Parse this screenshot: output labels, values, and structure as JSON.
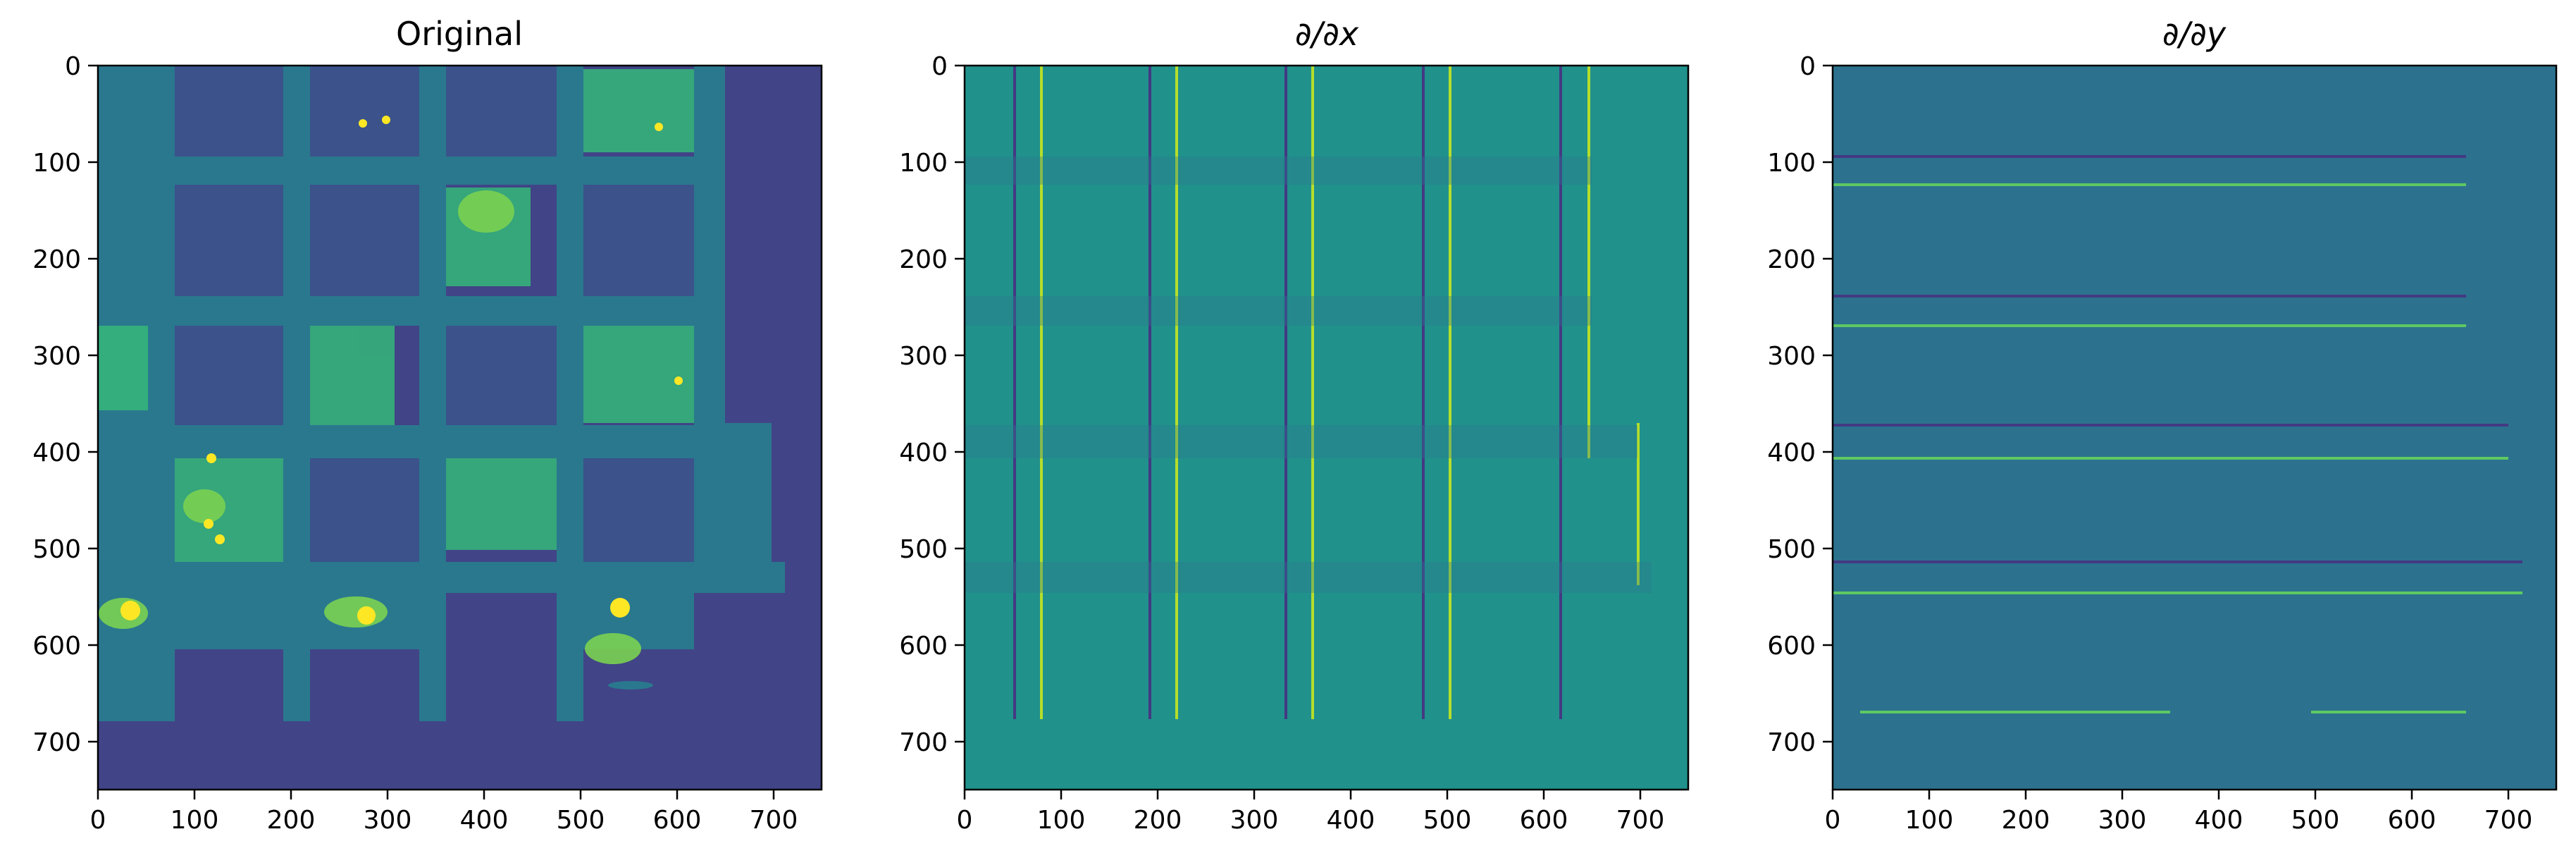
{
  "figure": {
    "panels": [
      {
        "id": "original",
        "title": "Original",
        "image_label": "Original grayscale micrograph of a grid shown with viridis colormap",
        "x_ticks": [
          "0",
          "100",
          "200",
          "300",
          "400",
          "500",
          "600",
          "700"
        ],
        "y_ticks": [
          "0",
          "100",
          "200",
          "300",
          "400",
          "500",
          "600",
          "700"
        ],
        "x_range": [
          0,
          750
        ],
        "y_range": [
          0,
          750
        ]
      },
      {
        "id": "ddx",
        "title": "∂/∂x",
        "image_label": "Horizontal derivative of the image",
        "x_ticks": [
          "0",
          "100",
          "200",
          "300",
          "400",
          "500",
          "600",
          "700"
        ],
        "y_ticks": [
          "0",
          "100",
          "200",
          "300",
          "400",
          "500",
          "600",
          "700"
        ],
        "x_range": [
          0,
          750
        ],
        "y_range": [
          0,
          750
        ]
      },
      {
        "id": "ddy",
        "title": "∂/∂y",
        "image_label": "Vertical derivative of the image",
        "x_ticks": [
          "0",
          "100",
          "200",
          "300",
          "400",
          "500",
          "600",
          "700"
        ],
        "y_ticks": [
          "0",
          "100",
          "200",
          "300",
          "400",
          "500",
          "600",
          "700"
        ],
        "x_range": [
          0,
          750
        ],
        "y_range": [
          0,
          750
        ]
      }
    ],
    "colors": {
      "orig_bg": "#414487",
      "orig_bar": "#2a788e",
      "orig_hole": "#3b528b",
      "orig_bright": "#7ad151",
      "orig_yellow": "#fde725",
      "dx_bg": "#21918c",
      "dy_bg": "#2c728e",
      "edge_pos": "#b5de2b",
      "edge_neg": "#443983"
    }
  }
}
